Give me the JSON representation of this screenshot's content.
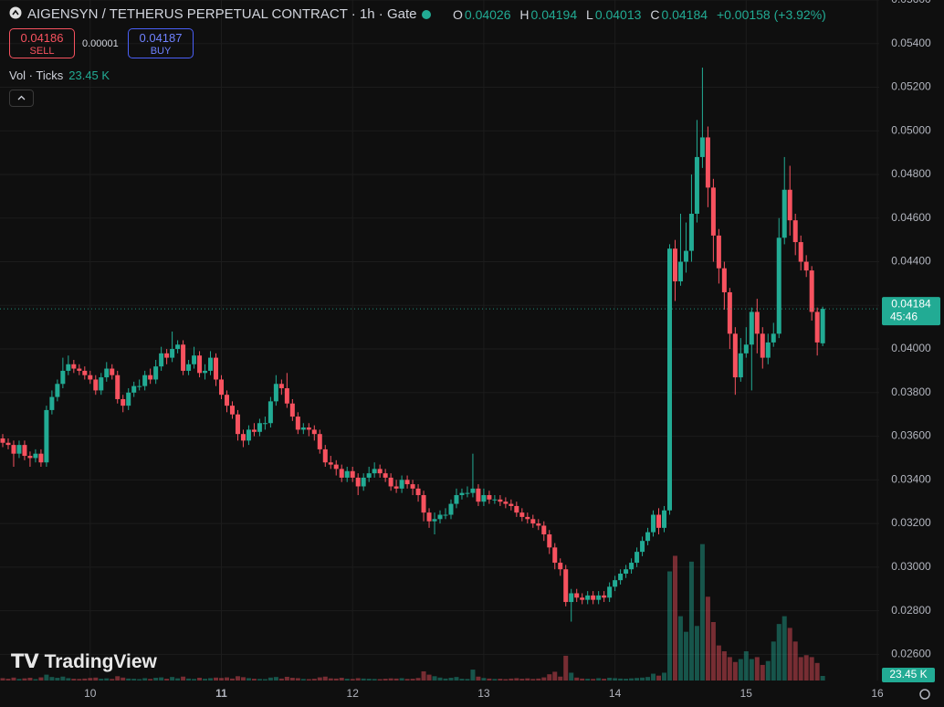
{
  "chart_data": {
    "type": "candlestick",
    "title": "AIGENSYN / TETHERUS PERPETUAL CONTRACT · 1h · Gate",
    "legend_keys": [
      "O",
      "H",
      "L",
      "C"
    ],
    "change": "+0.00158 (+3.92%)",
    "sell_price": 0.04186,
    "sell_label": "SELL",
    "spread": 1e-05,
    "buy_price": 0.04187,
    "buy_label": "BUY",
    "volume_legend": "Vol · Ticks",
    "volume_label": "23.45 K",
    "countdown": "45:46",
    "logo": "TradingView",
    "up_color": "#22ab94",
    "down_color": "#f7525f",
    "grid": true,
    "xlim": [
      -16.5,
      144.33
    ],
    "xticks": [
      {
        "value": 0,
        "label": "10"
      },
      {
        "value": 24,
        "label": "11"
      },
      {
        "value": 48,
        "label": "12"
      },
      {
        "value": 72,
        "label": "13"
      },
      {
        "value": 96,
        "label": "14"
      },
      {
        "value": 120,
        "label": "15"
      },
      {
        "value": 144,
        "label": "16"
      }
    ],
    "ylim": [
      0.0248,
      0.056
    ],
    "yticks": [
      {
        "value": 0.026,
        "label": "0.02600"
      },
      {
        "value": 0.028,
        "label": "0.02800"
      },
      {
        "value": 0.03,
        "label": "0.03000"
      },
      {
        "value": 0.032,
        "label": "0.03200"
      },
      {
        "value": 0.034,
        "label": "0.03400"
      },
      {
        "value": 0.036,
        "label": "0.03600"
      },
      {
        "value": 0.038,
        "label": "0.03800"
      },
      {
        "value": 0.04,
        "label": "0.04000"
      },
      {
        "value": 0.042,
        "label": "0.04200"
      },
      {
        "value": 0.044,
        "label": "0.04400"
      },
      {
        "value": 0.046,
        "label": "0.04600"
      },
      {
        "value": 0.048,
        "label": "0.04800"
      },
      {
        "value": 0.05,
        "label": "0.05000"
      },
      {
        "value": 0.052,
        "label": "0.05200"
      },
      {
        "value": 0.054,
        "label": "0.05400"
      },
      {
        "value": 0.056,
        "label": "0.05600"
      }
    ],
    "vlim": [
      0,
      750000
    ],
    "x": [
      -16,
      -15,
      -14,
      -13,
      -12,
      -11,
      -10,
      -9,
      -8,
      -7,
      -6,
      -5,
      -4,
      -3,
      -2,
      -1,
      0,
      1,
      2,
      3,
      4,
      5,
      6,
      7,
      8,
      9,
      10,
      11,
      12,
      13,
      14,
      15,
      16,
      17,
      18,
      19,
      20,
      21,
      22,
      23,
      24,
      25,
      26,
      27,
      28,
      29,
      30,
      31,
      32,
      33,
      34,
      35,
      36,
      37,
      38,
      39,
      40,
      41,
      42,
      43,
      44,
      45,
      46,
      47,
      48,
      49,
      50,
      51,
      52,
      53,
      54,
      55,
      56,
      57,
      58,
      59,
      60,
      61,
      62,
      63,
      64,
      65,
      66,
      67,
      68,
      69,
      70,
      71,
      72,
      73,
      74,
      75,
      76,
      77,
      78,
      79,
      80,
      81,
      82,
      83,
      84,
      85,
      86,
      87,
      88,
      89,
      90,
      91,
      92,
      93,
      94,
      95,
      96,
      97,
      98,
      99,
      100,
      101,
      102,
      103,
      104,
      105,
      106,
      107,
      108,
      109,
      110,
      111,
      112,
      113,
      114,
      115,
      116,
      117,
      118,
      119,
      120,
      121,
      122,
      123,
      124,
      125,
      126,
      127,
      128,
      129,
      130,
      131,
      132,
      133,
      134
    ],
    "open": [
      0.0359,
      0.0357,
      0.0356,
      0.0352,
      0.0356,
      0.0351,
      0.035,
      0.0352,
      0.0348,
      0.0372,
      0.0378,
      0.0384,
      0.039,
      0.0393,
      0.0391,
      0.039,
      0.0388,
      0.0386,
      0.0381,
      0.0387,
      0.0391,
      0.0388,
      0.0377,
      0.0374,
      0.038,
      0.0383,
      0.0383,
      0.0388,
      0.0386,
      0.0392,
      0.0398,
      0.0396,
      0.04,
      0.0402,
      0.039,
      0.0393,
      0.0397,
      0.0389,
      0.039,
      0.0396,
      0.0386,
      0.0379,
      0.0374,
      0.037,
      0.0361,
      0.0358,
      0.0363,
      0.0362,
      0.0366,
      0.0366,
      0.0376,
      0.0384,
      0.0382,
      0.0375,
      0.0369,
      0.0363,
      0.0364,
      0.0363,
      0.0361,
      0.0354,
      0.0348,
      0.0347,
      0.0345,
      0.0341,
      0.0344,
      0.0341,
      0.0337,
      0.0341,
      0.0343,
      0.0345,
      0.0343,
      0.0341,
      0.0337,
      0.0336,
      0.034,
      0.0338,
      0.0336,
      0.0333,
      0.0325,
      0.0321,
      0.0322,
      0.0324,
      0.0324,
      0.0329,
      0.0333,
      0.0334,
      0.0334,
      0.0336,
      0.033,
      0.0333,
      0.0331,
      0.0331,
      0.033,
      0.0329,
      0.0328,
      0.0325,
      0.0323,
      0.0322,
      0.032,
      0.0319,
      0.0315,
      0.0309,
      0.0302,
      0.0299,
      0.0284,
      0.0288,
      0.0286,
      0.0285,
      0.0287,
      0.0285,
      0.0287,
      0.0286,
      0.0291,
      0.0294,
      0.0297,
      0.0299,
      0.0302,
      0.0307,
      0.0312,
      0.0316,
      0.0324,
      0.0318,
      0.0326,
      0.0446,
      0.0431,
      0.044,
      0.0445,
      0.0462,
      0.0488,
      0.0497,
      0.0474,
      0.0452,
      0.0437,
      0.0426,
      0.0407,
      0.0387,
      0.0398,
      0.0402,
      0.0417,
      0.0407,
      0.0396,
      0.0403,
      0.0407,
      0.0451,
      0.0473,
      0.0459,
      0.0449,
      0.044,
      0.0436,
      0.0417,
      0.04026
    ],
    "high": [
      0.0361,
      0.0359,
      0.0358,
      0.0358,
      0.0358,
      0.0353,
      0.0354,
      0.0354,
      0.0374,
      0.0381,
      0.0386,
      0.0396,
      0.0397,
      0.0395,
      0.0393,
      0.0392,
      0.039,
      0.0388,
      0.0389,
      0.0394,
      0.0393,
      0.039,
      0.0379,
      0.0382,
      0.0385,
      0.0386,
      0.039,
      0.0391,
      0.0395,
      0.0401,
      0.04,
      0.0408,
      0.0404,
      0.0404,
      0.0395,
      0.0401,
      0.0399,
      0.0393,
      0.0399,
      0.0398,
      0.0388,
      0.0381,
      0.0376,
      0.0372,
      0.0363,
      0.0365,
      0.0366,
      0.0368,
      0.0369,
      0.0378,
      0.0388,
      0.0386,
      0.0389,
      0.0377,
      0.0371,
      0.0366,
      0.0366,
      0.0365,
      0.0363,
      0.0356,
      0.0351,
      0.0349,
      0.0347,
      0.0346,
      0.0346,
      0.0343,
      0.0343,
      0.0346,
      0.0348,
      0.0347,
      0.0345,
      0.0343,
      0.034,
      0.0342,
      0.0342,
      0.034,
      0.0338,
      0.0335,
      0.0327,
      0.0325,
      0.0326,
      0.0327,
      0.0331,
      0.0336,
      0.0336,
      0.0337,
      0.0352,
      0.0338,
      0.0336,
      0.0335,
      0.0333,
      0.0333,
      0.0332,
      0.0331,
      0.033,
      0.0327,
      0.0325,
      0.0324,
      0.0322,
      0.0321,
      0.0317,
      0.0311,
      0.0304,
      0.0301,
      0.029,
      0.029,
      0.0288,
      0.0289,
      0.0289,
      0.0289,
      0.0289,
      0.0293,
      0.0296,
      0.0299,
      0.0301,
      0.0304,
      0.0309,
      0.0314,
      0.0318,
      0.0326,
      0.0327,
      0.0328,
      0.0448,
      0.045,
      0.0462,
      0.0458,
      0.048,
      0.0505,
      0.0529,
      0.0502,
      0.0478,
      0.0455,
      0.044,
      0.0428,
      0.041,
      0.0405,
      0.041,
      0.0419,
      0.0423,
      0.041,
      0.0407,
      0.0412,
      0.046,
      0.0488,
      0.0484,
      0.0462,
      0.0452,
      0.0443,
      0.0438,
      0.0419,
      0.04194
    ],
    "low": [
      0.0355,
      0.0354,
      0.0346,
      0.035,
      0.0349,
      0.0346,
      0.0348,
      0.0346,
      0.0346,
      0.037,
      0.0376,
      0.0382,
      0.0388,
      0.0389,
      0.0388,
      0.0386,
      0.0384,
      0.0379,
      0.0379,
      0.0385,
      0.0386,
      0.0375,
      0.0371,
      0.0372,
      0.0378,
      0.0381,
      0.0381,
      0.0384,
      0.0384,
      0.039,
      0.0393,
      0.0394,
      0.0398,
      0.0388,
      0.0388,
      0.0391,
      0.0387,
      0.0386,
      0.0388,
      0.0383,
      0.0377,
      0.0371,
      0.0368,
      0.0358,
      0.0355,
      0.0356,
      0.036,
      0.036,
      0.0363,
      0.0364,
      0.0374,
      0.0379,
      0.0373,
      0.0367,
      0.0361,
      0.0361,
      0.036,
      0.0358,
      0.0352,
      0.0346,
      0.0345,
      0.0342,
      0.0339,
      0.0339,
      0.0339,
      0.0333,
      0.0335,
      0.0339,
      0.0341,
      0.0341,
      0.0339,
      0.0335,
      0.0334,
      0.0334,
      0.0336,
      0.0333,
      0.033,
      0.0321,
      0.0318,
      0.0315,
      0.032,
      0.0322,
      0.0322,
      0.0327,
      0.0331,
      0.0332,
      0.0332,
      0.0328,
      0.0328,
      0.0329,
      0.0329,
      0.0328,
      0.0327,
      0.0326,
      0.0323,
      0.0321,
      0.032,
      0.0318,
      0.0317,
      0.0312,
      0.0306,
      0.0299,
      0.0296,
      0.0282,
      0.0275,
      0.0284,
      0.0283,
      0.0283,
      0.0283,
      0.0283,
      0.0284,
      0.0284,
      0.0289,
      0.0292,
      0.0295,
      0.0297,
      0.03,
      0.0305,
      0.031,
      0.0314,
      0.0315,
      0.0316,
      0.0324,
      0.0422,
      0.0429,
      0.0435,
      0.044,
      0.0458,
      0.0483,
      0.0465,
      0.044,
      0.043,
      0.0418,
      0.04,
      0.0379,
      0.0385,
      0.0396,
      0.0381,
      0.0398,
      0.0391,
      0.0393,
      0.0401,
      0.0405,
      0.0448,
      0.0452,
      0.0443,
      0.0436,
      0.0433,
      0.0413,
      0.0397,
      0.04013
    ],
    "close": [
      0.0357,
      0.0356,
      0.0352,
      0.0356,
      0.0351,
      0.035,
      0.0352,
      0.0348,
      0.0372,
      0.0378,
      0.0384,
      0.039,
      0.0393,
      0.0391,
      0.039,
      0.0388,
      0.0386,
      0.0381,
      0.0387,
      0.0391,
      0.0388,
      0.0377,
      0.0374,
      0.038,
      0.0383,
      0.0383,
      0.0388,
      0.0386,
      0.0392,
      0.0398,
      0.0396,
      0.04,
      0.0402,
      0.039,
      0.0393,
      0.0397,
      0.0389,
      0.039,
      0.0396,
      0.0386,
      0.0379,
      0.0374,
      0.037,
      0.0361,
      0.0358,
      0.0363,
      0.0362,
      0.0366,
      0.0366,
      0.0376,
      0.0384,
      0.0382,
      0.0375,
      0.0369,
      0.0363,
      0.0364,
      0.0363,
      0.0361,
      0.0354,
      0.0348,
      0.0347,
      0.0345,
      0.0341,
      0.0344,
      0.0341,
      0.0337,
      0.0341,
      0.0343,
      0.0345,
      0.0343,
      0.0341,
      0.0337,
      0.0336,
      0.034,
      0.0338,
      0.0336,
      0.0333,
      0.0325,
      0.0321,
      0.0322,
      0.0324,
      0.0324,
      0.0329,
      0.0333,
      0.0334,
      0.0334,
      0.0336,
      0.033,
      0.0333,
      0.0331,
      0.0331,
      0.033,
      0.0329,
      0.0328,
      0.0325,
      0.0323,
      0.0322,
      0.032,
      0.0319,
      0.0315,
      0.0309,
      0.0302,
      0.0299,
      0.0284,
      0.0288,
      0.0286,
      0.0285,
      0.0287,
      0.0285,
      0.0287,
      0.0286,
      0.0291,
      0.0294,
      0.0297,
      0.0299,
      0.0302,
      0.0307,
      0.0312,
      0.0316,
      0.0324,
      0.0318,
      0.0326,
      0.0446,
      0.0431,
      0.044,
      0.0445,
      0.0462,
      0.0488,
      0.0497,
      0.0474,
      0.0452,
      0.0437,
      0.0426,
      0.0407,
      0.0387,
      0.0398,
      0.0402,
      0.0417,
      0.0407,
      0.0396,
      0.0403,
      0.0407,
      0.0451,
      0.0473,
      0.0459,
      0.0449,
      0.044,
      0.0436,
      0.0417,
      0.0403,
      0.04184
    ],
    "volume": [
      12000,
      9000,
      15000,
      8000,
      11000,
      14000,
      7000,
      16000,
      30000,
      18000,
      14000,
      20000,
      12000,
      9000,
      8000,
      10000,
      13000,
      15000,
      9000,
      11000,
      8000,
      22000,
      15000,
      10000,
      9000,
      7000,
      12000,
      8000,
      14000,
      16000,
      9000,
      18000,
      11000,
      20000,
      10000,
      8000,
      14000,
      9000,
      12000,
      15000,
      13000,
      16000,
      10000,
      22000,
      17000,
      12000,
      9000,
      8000,
      7000,
      15000,
      18000,
      10000,
      19000,
      14000,
      12000,
      8000,
      7000,
      9000,
      16000,
      20000,
      11000,
      10000,
      14000,
      9000,
      8000,
      12000,
      10000,
      9000,
      8000,
      7000,
      9000,
      11000,
      10000,
      12000,
      8000,
      9000,
      13000,
      47000,
      30000,
      22000,
      15000,
      10000,
      14000,
      18000,
      9000,
      8000,
      56000,
      20000,
      13000,
      10000,
      8000,
      9000,
      7000,
      10000,
      12000,
      9000,
      11000,
      8000,
      10000,
      16000,
      32000,
      45000,
      20000,
      127000,
      40000,
      15000,
      10000,
      9000,
      8000,
      12000,
      9000,
      14000,
      12000,
      10000,
      9000,
      11000,
      13000,
      15000,
      18000,
      35000,
      25000,
      40000,
      560000,
      640000,
      330000,
      250000,
      610000,
      280000,
      700000,
      430000,
      300000,
      180000,
      150000,
      120000,
      95000,
      110000,
      150000,
      110000,
      120000,
      80000,
      100000,
      200000,
      290000,
      330000,
      270000,
      200000,
      120000,
      130000,
      120000,
      90000,
      23450
    ]
  }
}
